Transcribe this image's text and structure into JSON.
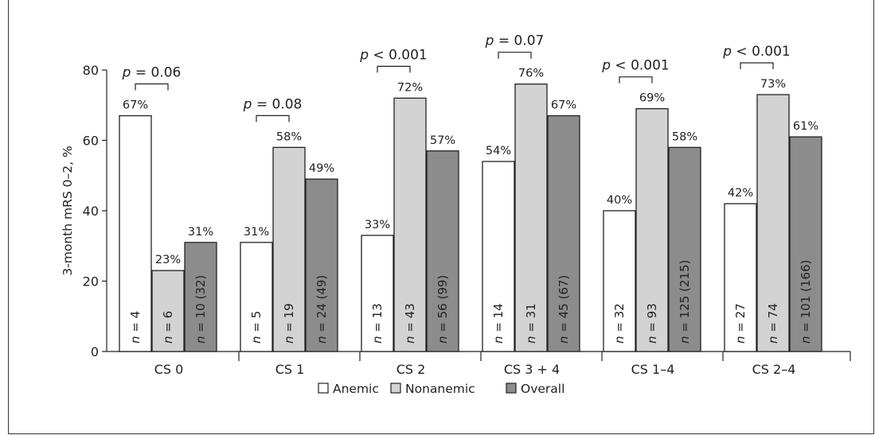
{
  "chart_data": {
    "type": "bar",
    "ylabel": "3-month mRS 0–2, %",
    "ylim": [
      0,
      80
    ],
    "yticks": [
      0,
      20,
      40,
      60,
      80
    ],
    "categories": [
      "CS 0",
      "CS 1",
      "CS 2",
      "CS 3 + 4",
      "CS 1–4",
      "CS 2–4"
    ],
    "series": [
      {
        "name": "Anemic",
        "color": "#ffffff",
        "values": [
          67,
          31,
          33,
          54,
          40,
          42
        ],
        "value_labels": [
          "67%",
          "31%",
          "33%",
          "54%",
          "40%",
          "42%"
        ],
        "n_labels": [
          "4",
          "5",
          "13",
          "14",
          "32",
          "27"
        ]
      },
      {
        "name": "Nonanemic",
        "color": "#d3d3d3",
        "values": [
          23,
          58,
          72,
          76,
          69,
          73
        ],
        "value_labels": [
          "23%",
          "58%",
          "72%",
          "76%",
          "69%",
          "73%"
        ],
        "n_labels": [
          "6",
          "19",
          "43",
          "31",
          "93",
          "74"
        ]
      },
      {
        "name": "Overall",
        "color": "#8c8c8c",
        "values": [
          31,
          49,
          57,
          67,
          58,
          61
        ],
        "value_labels": [
          "31%",
          "49%",
          "57%",
          "67%",
          "58%",
          "61%"
        ],
        "n_labels": [
          "10 (32)",
          "24 (49)",
          "56 (99)",
          "45 (67)",
          "125 (215)",
          "101 (166)"
        ]
      }
    ],
    "p_values": [
      {
        "p": "p",
        "rest": " = 0.06"
      },
      {
        "p": "p",
        "rest": " = 0.08"
      },
      {
        "p": "p",
        "rest": " < 0.001"
      },
      {
        "p": "p",
        "rest": " = 0.07"
      },
      {
        "p": "p",
        "rest": " < 0.001"
      },
      {
        "p": "p",
        "rest": " < 0.001"
      }
    ],
    "n_prefix": "n",
    "n_eq": " = ",
    "legend": [
      "Anemic",
      "Nonanemic",
      "Overall"
    ],
    "legend_position": "bottom-center",
    "grid": false
  }
}
